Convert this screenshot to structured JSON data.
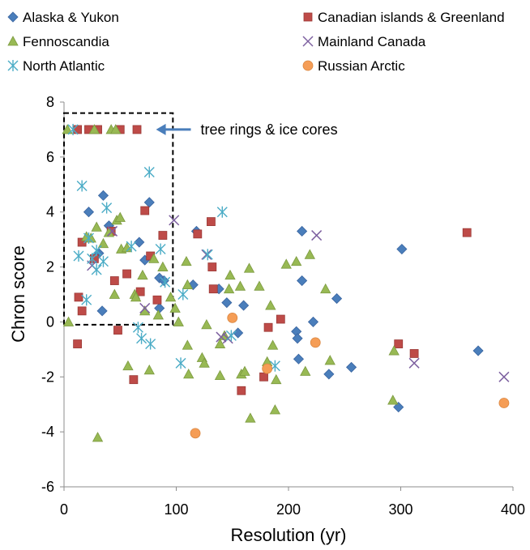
{
  "chart_data": {
    "type": "scatter",
    "xlabel": "Resolution (yr)",
    "ylabel": "Chron score",
    "xlim": [
      0,
      400
    ],
    "ylim": [
      -6,
      8
    ],
    "xticks": [
      "0",
      "100",
      "200",
      "300",
      "400"
    ],
    "yticks": [
      "-6",
      "-4",
      "-2",
      "0",
      "2",
      "4",
      "6",
      "8"
    ],
    "x_tick_values": [
      0,
      100,
      200,
      300,
      400
    ],
    "y_tick_values": [
      -6,
      -4,
      -2,
      0,
      2,
      4,
      6,
      8
    ],
    "grid": false,
    "legend_position": "top",
    "annotation": {
      "text": "tree rings & ice cores",
      "box_x": [
        0,
        97
      ],
      "box_y": [
        -0.1,
        7.6
      ],
      "arrow_to": [
        82,
        7.0
      ],
      "arrow_from": [
        113,
        7.0
      ]
    },
    "series": [
      {
        "name": "Alaska & Yukon",
        "marker": "diamond",
        "color": "#4a7ebb",
        "points": [
          [
            22,
            4.0
          ],
          [
            35,
            4.6
          ],
          [
            40,
            3.5
          ],
          [
            76,
            4.35
          ],
          [
            31,
            2.5
          ],
          [
            67,
            2.9
          ],
          [
            72,
            2.25
          ],
          [
            85,
            1.6
          ],
          [
            89,
            1.5
          ],
          [
            85,
            0.5
          ],
          [
            34,
            0.4
          ],
          [
            118,
            3.3
          ],
          [
            115,
            1.35
          ],
          [
            138,
            1.2
          ],
          [
            145,
            0.7
          ],
          [
            155,
            -0.4
          ],
          [
            160,
            0.6
          ],
          [
            212,
            3.3
          ],
          [
            212,
            1.5
          ],
          [
            207,
            -0.35
          ],
          [
            208,
            -0.6
          ],
          [
            209,
            -1.35
          ],
          [
            222,
            0.0
          ],
          [
            243,
            0.85
          ],
          [
            236,
            -1.9
          ],
          [
            256,
            -1.65
          ],
          [
            301,
            2.65
          ],
          [
            298,
            -3.1
          ],
          [
            369,
            -1.05
          ]
        ]
      },
      {
        "name": "Canadian islands & Greenland",
        "marker": "square",
        "color": "#be4b48",
        "points": [
          [
            12,
            7.0
          ],
          [
            22,
            7.0
          ],
          [
            30,
            7.0
          ],
          [
            50,
            7.0
          ],
          [
            65,
            7.0
          ],
          [
            16,
            2.9
          ],
          [
            27,
            2.3
          ],
          [
            42,
            3.3
          ],
          [
            45,
            1.5
          ],
          [
            48,
            -0.3
          ],
          [
            56,
            1.75
          ],
          [
            62,
            -2.1
          ],
          [
            68,
            1.1
          ],
          [
            72,
            4.05
          ],
          [
            77,
            2.4
          ],
          [
            83,
            0.8
          ],
          [
            88,
            3.15
          ],
          [
            13,
            0.9
          ],
          [
            16,
            0.4
          ],
          [
            12,
            -0.8
          ],
          [
            119,
            3.2
          ],
          [
            131,
            3.65
          ],
          [
            133,
            1.2
          ],
          [
            132,
            2.0
          ],
          [
            158,
            -2.5
          ],
          [
            178,
            -2.0
          ],
          [
            182,
            -0.2
          ],
          [
            193,
            0.1
          ],
          [
            298,
            -0.8
          ],
          [
            312,
            -1.15
          ],
          [
            359,
            3.25
          ]
        ]
      },
      {
        "name": "Fennoscandia",
        "marker": "triangle",
        "color": "#98b954",
        "points": [
          [
            4,
            0.0
          ],
          [
            3,
            7.0
          ],
          [
            27,
            7.0
          ],
          [
            42,
            7.0
          ],
          [
            46,
            7.0
          ],
          [
            20,
            3.1
          ],
          [
            24,
            3.05
          ],
          [
            29,
            3.45
          ],
          [
            35,
            2.85
          ],
          [
            40,
            3.25
          ],
          [
            47,
            3.7
          ],
          [
            50,
            3.8
          ],
          [
            51,
            2.65
          ],
          [
            56,
            2.7
          ],
          [
            63,
            1.0
          ],
          [
            64,
            0.9
          ],
          [
            70,
            1.7
          ],
          [
            72,
            0.4
          ],
          [
            76,
            -1.75
          ],
          [
            80,
            2.3
          ],
          [
            84,
            0.25
          ],
          [
            88,
            2.0
          ],
          [
            95,
            0.9
          ],
          [
            99,
            0.5
          ],
          [
            102,
            0.0
          ],
          [
            57,
            -1.6
          ],
          [
            30,
            -4.2
          ],
          [
            45,
            1.0
          ],
          [
            109,
            2.2
          ],
          [
            110,
            1.35
          ],
          [
            110,
            -0.85
          ],
          [
            111,
            -1.9
          ],
          [
            123,
            -1.3
          ],
          [
            125,
            -1.5
          ],
          [
            127,
            -0.1
          ],
          [
            139,
            -0.8
          ],
          [
            139,
            -1.95
          ],
          [
            143,
            -0.5
          ],
          [
            148,
            1.7
          ],
          [
            147,
            1.2
          ],
          [
            157,
            1.3
          ],
          [
            158,
            -1.9
          ],
          [
            161,
            -1.8
          ],
          [
            165,
            1.95
          ],
          [
            166,
            -3.5
          ],
          [
            174,
            1.3
          ],
          [
            181,
            -1.45
          ],
          [
            184,
            0.6
          ],
          [
            186,
            -0.85
          ],
          [
            188,
            -3.2
          ],
          [
            189,
            -2.1
          ],
          [
            198,
            2.1
          ],
          [
            207,
            2.2
          ],
          [
            215,
            -1.8
          ],
          [
            219,
            2.45
          ],
          [
            233,
            1.2
          ],
          [
            237,
            -1.4
          ],
          [
            293,
            -2.85
          ],
          [
            294,
            -1.05
          ]
        ]
      },
      {
        "name": "Mainland Canada",
        "marker": "x",
        "color": "#7d60a0",
        "points": [
          [
            25,
            2.05
          ],
          [
            43,
            3.3
          ],
          [
            72,
            0.5
          ],
          [
            98,
            3.7
          ],
          [
            127,
            2.45
          ],
          [
            140,
            -0.55
          ],
          [
            146,
            -0.6
          ],
          [
            225,
            3.15
          ],
          [
            312,
            -1.5
          ],
          [
            392,
            -2.0
          ]
        ]
      },
      {
        "name": "North Atlantic",
        "marker": "asterisk",
        "color": "#4bacc6",
        "points": [
          [
            8,
            7.0
          ],
          [
            16,
            4.95
          ],
          [
            25,
            2.3
          ],
          [
            29,
            2.6
          ],
          [
            29,
            1.9
          ],
          [
            35,
            2.2
          ],
          [
            38,
            4.15
          ],
          [
            60,
            2.75
          ],
          [
            66,
            -0.2
          ],
          [
            69,
            -0.6
          ],
          [
            76,
            5.45
          ],
          [
            77,
            -0.8
          ],
          [
            86,
            2.65
          ],
          [
            90,
            1.45
          ],
          [
            13,
            2.4
          ],
          [
            20,
            0.8
          ],
          [
            22,
            3.05
          ],
          [
            104,
            -1.5
          ],
          [
            106,
            1.0
          ],
          [
            128,
            2.45
          ],
          [
            141,
            4.0
          ],
          [
            149,
            -0.5
          ],
          [
            188,
            -1.6
          ]
        ]
      },
      {
        "name": "Russian Arctic",
        "marker": "circle",
        "color": "#f59d56",
        "points": [
          [
            117,
            -4.05
          ],
          [
            150,
            0.15
          ],
          [
            181,
            -1.7
          ],
          [
            224,
            -0.75
          ],
          [
            392,
            -2.95
          ]
        ]
      }
    ]
  }
}
